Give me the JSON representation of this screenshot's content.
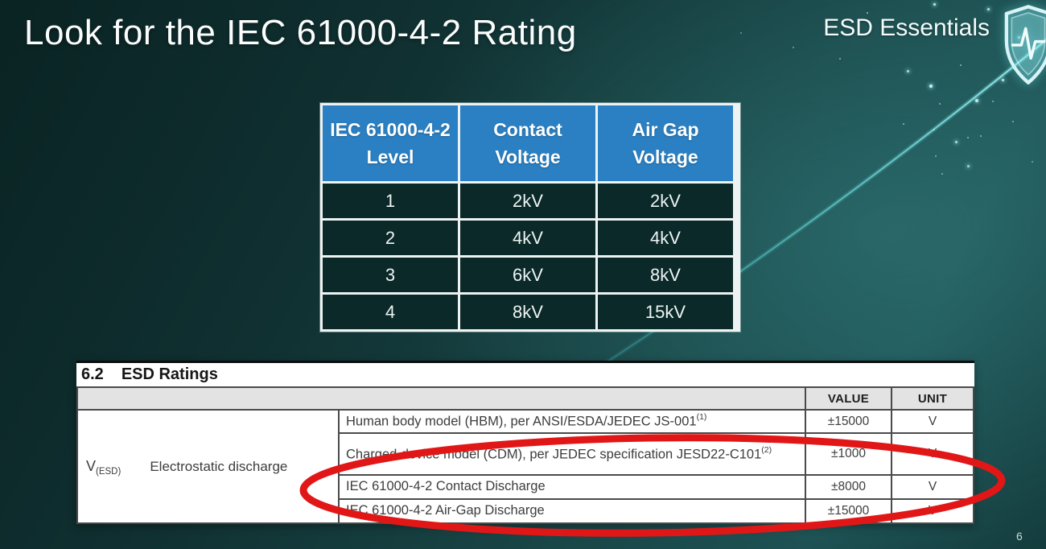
{
  "slide": {
    "title": "Look for the IEC 61000-4-2 Rating",
    "brand": "ESD Essentials",
    "page_number": "6",
    "colors": {
      "background_dark": "#0a2323",
      "background_light": "#1d5153",
      "table_header_blue": "#2b80c3",
      "table_cell_teal": "#0b2929",
      "highlight_ellipse_red": "#e11717",
      "streak_cyan": "#5ee6e6",
      "shield_outline": "#d8f4f6"
    }
  },
  "rating_table": {
    "headers": [
      [
        "IEC 61000-4-2",
        "Level"
      ],
      [
        "Contact",
        "Voltage"
      ],
      [
        "Air Gap",
        "Voltage"
      ]
    ],
    "rows": [
      [
        "1",
        "2kV",
        "2kV"
      ],
      [
        "2",
        "4kV",
        "4kV"
      ],
      [
        "3",
        "6kV",
        "8kV"
      ],
      [
        "4",
        "8kV",
        "15kV"
      ]
    ]
  },
  "datasheet": {
    "section_number": "6.2",
    "section_title": "ESD Ratings",
    "value_header": "VALUE",
    "unit_header": "UNIT",
    "symbol": "V",
    "symbol_subscript": "(ESD)",
    "parameter": "Electrostatic discharge",
    "rows": [
      {
        "description": "Human body model (HBM), per ANSI/ESDA/JEDEC JS-001",
        "superscript": "(1)",
        "value": "±15000",
        "unit": "V"
      },
      {
        "description": "Charged-device model (CDM), per JEDEC specification JESD22-C101",
        "superscript": "(2)",
        "value": "±1000",
        "unit": "V"
      },
      {
        "description": "IEC 61000-4-2 Contact Discharge",
        "superscript": "",
        "value": "±8000",
        "unit": "V"
      },
      {
        "description": "IEC 61000-4-2 Air-Gap Discharge",
        "superscript": "",
        "value": "±15000",
        "unit": "V"
      }
    ]
  }
}
